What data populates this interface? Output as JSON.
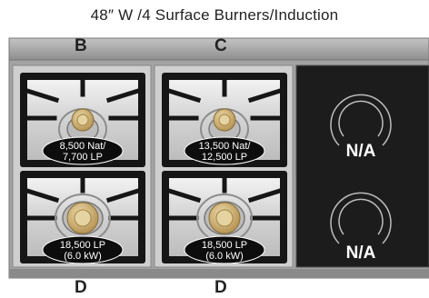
{
  "title": "48″ W /4 Surface Burners/Induction",
  "columns": {
    "top_left": "B",
    "top_right": "C",
    "bottom_left": "D",
    "bottom_right": "D"
  },
  "burners": {
    "b_top": {
      "line1": "8,500 Nat/",
      "line2": "7,700 LP"
    },
    "b_bottom": {
      "line1": "18,500 LP",
      "line2": "(6.0 kW)"
    },
    "c_top": {
      "line1": "13,500 Nat/",
      "line2": "12,500 LP"
    },
    "c_bottom": {
      "line1": "18,500 LP",
      "line2": "(6.0 kW)"
    }
  },
  "induction": {
    "top": "N/A",
    "bottom": "N/A"
  },
  "colors": {
    "body": "#a8a8a8",
    "grate": "#161616",
    "steel": "#d9d9d9",
    "induction": "#1c1c1c",
    "brass": "#c9ae72"
  }
}
